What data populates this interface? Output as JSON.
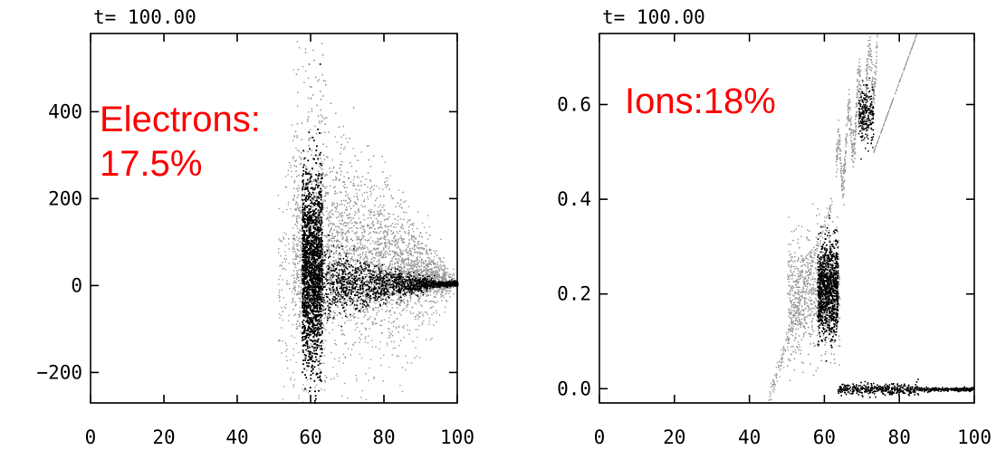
{
  "chart_data": [
    {
      "type": "scatter",
      "title": "t= 100.00",
      "annotation": [
        "Electrons:",
        "17.5%"
      ],
      "xlim": [
        0,
        100
      ],
      "ylim": [
        -270,
        580
      ],
      "xticks": [
        0,
        20,
        40,
        60,
        80,
        100
      ],
      "yticks": [
        -200,
        0,
        200,
        400
      ],
      "ytick_labels": [
        "−200",
        "0",
        "200",
        "400"
      ],
      "grid": false,
      "point_colors": {
        "light": "#9a9a9a",
        "dark": "#000000"
      },
      "point_cloud": {
        "x_range": [
          51,
          99
        ],
        "dense_band_x": [
          58,
          63
        ],
        "dense_band_y": [
          -200,
          460
        ],
        "tail_y_at_x100": 0
      }
    },
    {
      "type": "scatter",
      "title": "t= 100.00",
      "annotation": [
        "Ions:18%"
      ],
      "xlim": [
        0,
        100
      ],
      "ylim": [
        -0.03,
        0.75
      ],
      "xticks": [
        0,
        20,
        40,
        60,
        80,
        100
      ],
      "yticks": [
        0.0,
        0.2,
        0.4,
        0.6
      ],
      "ytick_labels": [
        "0.0",
        "0.2",
        "0.4",
        "0.6"
      ],
      "grid": false,
      "point_colors": {
        "light": "#9a9a9a",
        "dark": "#000000"
      },
      "point_cloud": {
        "x_range": [
          45,
          100
        ],
        "dense_band_x": [
          57,
          64
        ],
        "dense_band_y": [
          0.12,
          0.33
        ],
        "flat_branch_y": 0.0,
        "upper_branch_y": [
          0.45,
          0.72
        ]
      }
    }
  ]
}
